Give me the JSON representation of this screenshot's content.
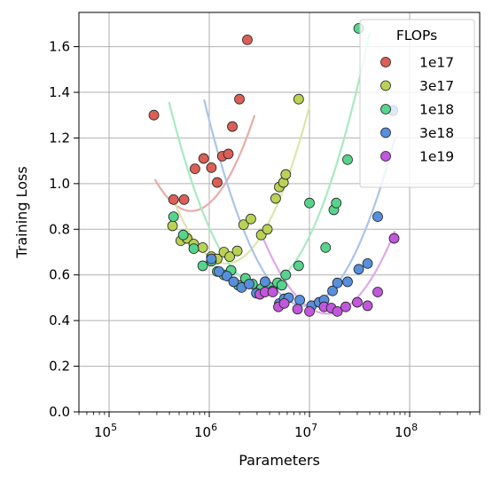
{
  "chart_data": {
    "type": "scatter",
    "xlabel": "Parameters",
    "ylabel": "Training Loss",
    "xscale": "log",
    "xlim": [
      50000,
      500000000
    ],
    "ylim": [
      0,
      1.75
    ],
    "grid": true,
    "legend": {
      "title": "FLOPs",
      "placement": "top-right"
    },
    "x_ticks": [
      {
        "value": 100000,
        "base": "10",
        "exp": "5"
      },
      {
        "value": 1000000,
        "base": "10",
        "exp": "6"
      },
      {
        "value": 10000000,
        "base": "10",
        "exp": "7"
      },
      {
        "value": 100000000,
        "base": "10",
        "exp": "8"
      }
    ],
    "y_ticks": [
      "0.0",
      "0.2",
      "0.4",
      "0.6",
      "0.8",
      "1.0",
      "1.2",
      "1.4",
      "1.6"
    ],
    "series": [
      {
        "name": "1e17",
        "color": "#db5f57",
        "fit_color": "#e8aca7",
        "fit": {
          "a": 0.88,
          "k": 1.05,
          "m": 5.82,
          "xmin": 5.46,
          "xmax": 6.45
        },
        "points": [
          [
            280000,
            1.3
          ],
          [
            440000,
            0.93
          ],
          [
            560000,
            0.93
          ],
          [
            720000,
            1.065
          ],
          [
            880000,
            1.11
          ],
          [
            1050000,
            1.07
          ],
          [
            1200000,
            1.005
          ],
          [
            1350000,
            1.12
          ],
          [
            1550000,
            1.13
          ],
          [
            1700000,
            1.25
          ],
          [
            2000000,
            1.37
          ],
          [
            2400000,
            1.63
          ]
        ]
      },
      {
        "name": "3e17",
        "color": "#b9d256",
        "fit_color": "#dbe7aa",
        "fit": {
          "a": 0.65,
          "k": 1.0,
          "m": 6.17,
          "xmin": 5.62,
          "xmax": 7.0
        },
        "points": [
          [
            430000,
            0.815
          ],
          [
            520000,
            0.75
          ],
          [
            600000,
            0.76
          ],
          [
            700000,
            0.735
          ],
          [
            860000,
            0.72
          ],
          [
            1050000,
            0.68
          ],
          [
            1200000,
            0.67
          ],
          [
            1400000,
            0.7
          ],
          [
            1600000,
            0.68
          ],
          [
            1900000,
            0.705
          ],
          [
            2200000,
            0.82
          ],
          [
            2600000,
            0.845
          ],
          [
            3300000,
            0.775
          ],
          [
            3800000,
            0.8
          ],
          [
            4600000,
            0.935
          ],
          [
            5000000,
            0.985
          ],
          [
            5500000,
            1.005
          ],
          [
            5800000,
            1.04
          ],
          [
            7800000,
            1.37
          ]
        ]
      },
      {
        "name": "1e18",
        "color": "#57d38c",
        "fit_color": "#a9e9c4",
        "fit": {
          "a": 0.55,
          "k": 0.95,
          "m": 6.52,
          "xmin": 5.6,
          "xmax": 7.6
        },
        "points": [
          [
            440000,
            0.855
          ],
          [
            550000,
            0.775
          ],
          [
            700000,
            0.715
          ],
          [
            860000,
            0.64
          ],
          [
            1050000,
            0.66
          ],
          [
            1200000,
            0.615
          ],
          [
            1400000,
            0.6
          ],
          [
            1650000,
            0.62
          ],
          [
            1950000,
            0.555
          ],
          [
            2300000,
            0.585
          ],
          [
            2700000,
            0.56
          ],
          [
            3300000,
            0.54
          ],
          [
            4000000,
            0.545
          ],
          [
            4800000,
            0.565
          ],
          [
            5300000,
            0.555
          ],
          [
            5800000,
            0.6
          ],
          [
            7800000,
            0.64
          ],
          [
            10000000,
            0.915
          ],
          [
            14500000,
            0.72
          ],
          [
            17500000,
            0.885
          ],
          [
            18500000,
            0.915
          ],
          [
            24000000,
            1.105
          ],
          [
            31000000,
            1.68
          ]
        ]
      },
      {
        "name": "3e18",
        "color": "#578fdb",
        "fit_color": "#a9c5ea",
        "fit": {
          "a": 0.465,
          "k": 0.9,
          "m": 6.95,
          "xmin": 5.95,
          "xmax": 7.85
        },
        "points": [
          [
            1050000,
            0.67
          ],
          [
            1250000,
            0.615
          ],
          [
            1500000,
            0.595
          ],
          [
            1750000,
            0.57
          ],
          [
            2100000,
            0.545
          ],
          [
            2500000,
            0.56
          ],
          [
            2950000,
            0.52
          ],
          [
            3600000,
            0.57
          ],
          [
            4300000,
            0.53
          ],
          [
            5000000,
            0.475
          ],
          [
            5600000,
            0.495
          ],
          [
            6200000,
            0.5
          ],
          [
            8000000,
            0.49
          ],
          [
            10500000,
            0.465
          ],
          [
            12500000,
            0.48
          ],
          [
            14000000,
            0.49
          ],
          [
            17000000,
            0.53
          ],
          [
            19000000,
            0.565
          ],
          [
            24000000,
            0.57
          ],
          [
            31000000,
            0.625
          ],
          [
            38000000,
            0.65
          ],
          [
            48000000,
            0.855
          ],
          [
            68000000,
            1.32
          ]
        ]
      },
      {
        "name": "1e19",
        "color": "#c157db",
        "fit_color": "#dfa9ea",
        "fit": {
          "a": 0.43,
          "k": 0.8,
          "m": 7.18,
          "xmin": 6.5,
          "xmax": 7.85
        },
        "points": [
          [
            3200000,
            0.515
          ],
          [
            3600000,
            0.525
          ],
          [
            4300000,
            0.525
          ],
          [
            4900000,
            0.46
          ],
          [
            5600000,
            0.475
          ],
          [
            7600000,
            0.45
          ],
          [
            10000000,
            0.44
          ],
          [
            14000000,
            0.46
          ],
          [
            16500000,
            0.455
          ],
          [
            19000000,
            0.44
          ],
          [
            23000000,
            0.46
          ],
          [
            30000000,
            0.48
          ],
          [
            38000000,
            0.465
          ],
          [
            48000000,
            0.525
          ],
          [
            70000000,
            0.76
          ]
        ]
      }
    ]
  }
}
